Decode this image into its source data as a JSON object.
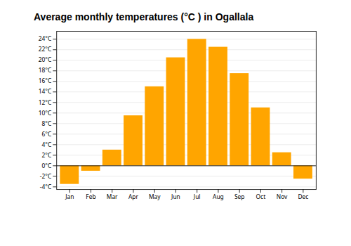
{
  "chart_data": {
    "type": "bar",
    "title": "Average monthly temperatures (°C ) in Ogallala",
    "categories": [
      "Jan",
      "Feb",
      "Mar",
      "Apr",
      "May",
      "Jun",
      "Jul",
      "Aug",
      "Sep",
      "Oct",
      "Nov",
      "Dec"
    ],
    "values": [
      -3.5,
      -1.0,
      3.0,
      9.5,
      15.0,
      20.5,
      24.0,
      22.5,
      17.5,
      11.0,
      2.5,
      -2.5
    ],
    "color": "#FFA500",
    "ylim": [
      -4.5,
      25.5
    ],
    "yticks": [
      {
        "value": -4,
        "label": "-4°C"
      },
      {
        "value": -2,
        "label": "-2°C"
      },
      {
        "value": 0,
        "label": "0°C"
      },
      {
        "value": 2,
        "label": "2°C"
      },
      {
        "value": 4,
        "label": "4°C"
      },
      {
        "value": 6,
        "label": "6°C"
      },
      {
        "value": 8,
        "label": "8°C"
      },
      {
        "value": 10,
        "label": "10°C"
      },
      {
        "value": 12,
        "label": "12°C"
      },
      {
        "value": 14,
        "label": "14°C"
      },
      {
        "value": 16,
        "label": "16°C"
      },
      {
        "value": 18,
        "label": "18°C"
      },
      {
        "value": 20,
        "label": "20°C"
      },
      {
        "value": 22,
        "label": "22°C"
      },
      {
        "value": 24,
        "label": "24°C"
      }
    ],
    "grid": true
  }
}
